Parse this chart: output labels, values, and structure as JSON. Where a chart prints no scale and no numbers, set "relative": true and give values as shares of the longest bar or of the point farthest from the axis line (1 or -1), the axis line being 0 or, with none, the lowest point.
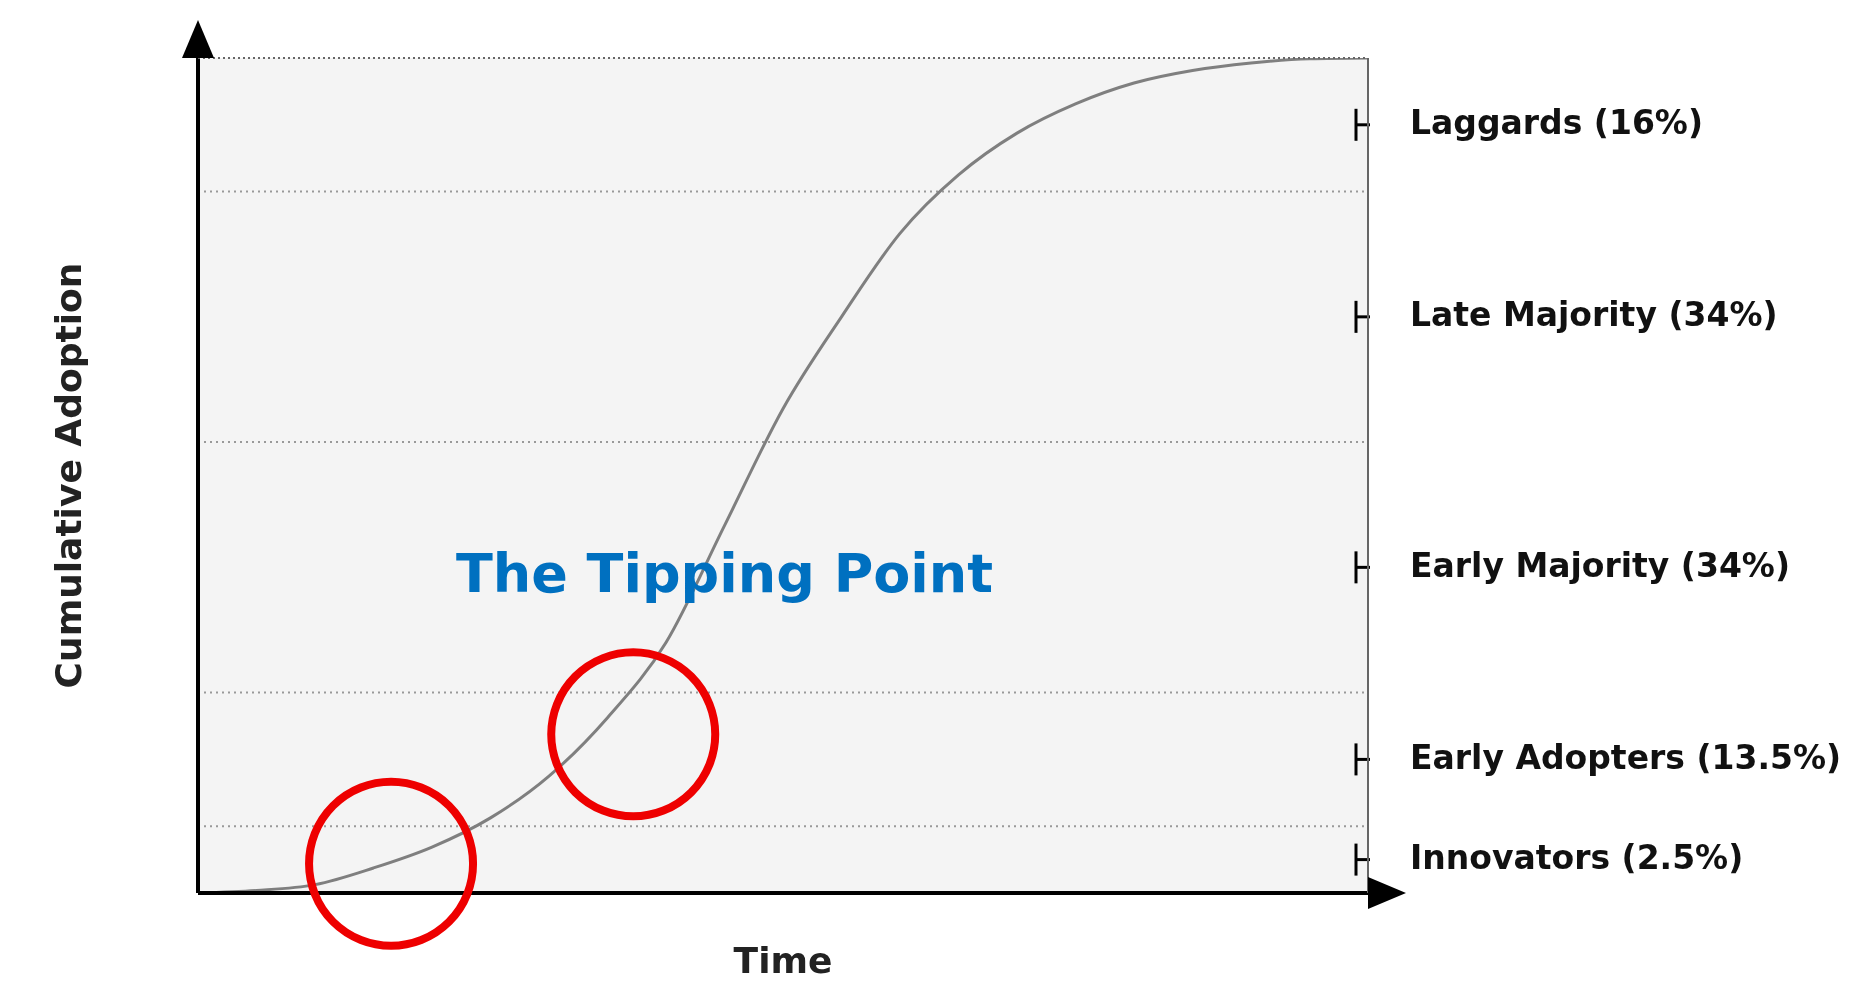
{
  "chart_data": {
    "type": "line",
    "relative": true,
    "xlabel": "Time",
    "ylabel": "Cumulative Adoption",
    "categories": [
      null,
      null,
      null,
      null,
      null,
      null,
      null,
      null,
      null,
      null,
      null,
      null,
      null,
      null,
      null,
      null,
      null,
      null,
      null,
      null,
      null
    ],
    "series": [
      {
        "color": "#7f7f7f",
        "values": [
          0,
          0.003,
          0.01,
          0.03,
          0.055,
          0.09,
          0.14,
          0.21,
          0.3,
          0.44,
          0.58,
          0.69,
          0.79,
          0.86,
          0.91,
          0.945,
          0.97,
          0.985,
          0.994,
          0.999,
          1
        ]
      }
    ],
    "ref_lines": [
      {
        "axis": "y",
        "value": 0.08,
        "color": "#999999",
        "line_style": "dotted"
      },
      {
        "axis": "y",
        "value": 0.24,
        "color": "#999999",
        "line_style": "dotted"
      },
      {
        "axis": "y",
        "value": 0.54,
        "color": "#999999",
        "line_style": "dotted"
      },
      {
        "axis": "y",
        "value": 0.84,
        "color": "#999999",
        "line_style": "dotted"
      }
    ],
    "bands": [
      {
        "axis": "y",
        "from": 0,
        "to": 0.08,
        "label": "Innovators (2.5%)",
        "color": "#f4f4f4"
      },
      {
        "axis": "y",
        "from": 0.08,
        "to": 0.24,
        "label": "Early Adopters (13.5%)",
        "color": "#f4f4f4"
      },
      {
        "axis": "y",
        "from": 0.24,
        "to": 0.54,
        "label": "Early Majority (34%)",
        "color": "#f4f4f4"
      },
      {
        "axis": "y",
        "from": 0.54,
        "to": 0.84,
        "label": "Late Majority (34%)",
        "color": "#f4f4f4"
      },
      {
        "axis": "y",
        "from": 0.84,
        "to": 1,
        "label": "Laggards (16%)",
        "color": "#f4f4f4"
      }
    ],
    "annotations": [
      "The Tipping Point"
    ],
    "grid": false,
    "legend": false,
    "marker": "none",
    "line_style": "solid"
  }
}
